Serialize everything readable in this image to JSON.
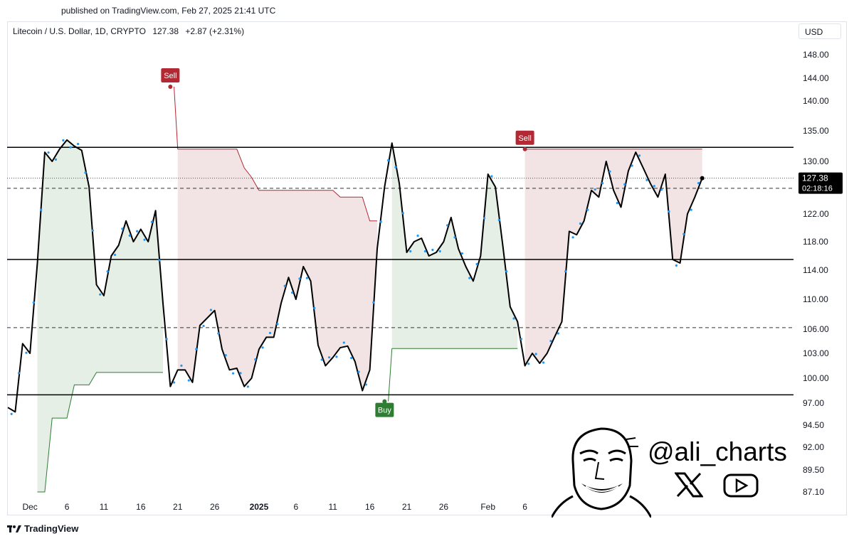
{
  "header": {
    "published": "published on TradingView.com, Feb 27, 2025 21:41 UTC"
  },
  "symbol": {
    "name": "Litecoin / U.S. Dollar, 1D, CRYPTO",
    "price": "127.38",
    "change": "+2.87 (+2.31%)"
  },
  "currency": "USD",
  "price_tag": {
    "price": "127.38",
    "countdown": "02:18:16"
  },
  "footer": {
    "brand": "TradingView"
  },
  "watermark": {
    "handle": "@ali_charts",
    "icons": [
      "face-illustration",
      "x-logo-icon",
      "youtube-icon"
    ]
  },
  "colors": {
    "line": "#000000",
    "dots": "#2196f3",
    "sell": "#b22833",
    "buy": "#2e7d32",
    "sell_fill": "#f2e4e4",
    "buy_fill": "#e6efe6"
  },
  "chart_data": {
    "type": "line",
    "title": "",
    "xlabel": "",
    "ylabel": "",
    "y_ticks": [
      "148.00",
      "144.00",
      "140.00",
      "135.00",
      "130.00",
      "126.00",
      "122.00",
      "118.00",
      "114.00",
      "110.00",
      "106.00",
      "103.00",
      "100.00",
      "97.00",
      "94.50",
      "92.00",
      "89.50",
      "87.10"
    ],
    "x_ticks": [
      "Dec",
      "6",
      "11",
      "16",
      "21",
      "26",
      "2025",
      "6",
      "11",
      "16",
      "21",
      "26",
      "Feb",
      "6"
    ],
    "x_tick_bold": [
      "2025"
    ],
    "ylim": [
      86,
      150
    ],
    "series": [
      {
        "values": [
          96.5,
          96.0,
          104.2,
          103.0,
          115.0,
          131.5,
          130.0,
          132.0,
          133.5,
          132.5,
          131.8,
          126.0,
          112.0,
          110.5,
          116.0,
          117.5,
          121.0,
          118.0,
          119.8,
          118.0,
          122.5,
          109.5,
          99.0,
          101.0,
          101.0,
          99.5,
          106.5,
          107.5,
          108.5,
          103.5,
          101.0,
          101.2,
          99.0,
          100.0,
          103.5,
          105.0,
          105.0,
          109.5,
          113.0,
          110.0,
          114.5,
          112.5,
          104.0,
          101.5,
          102.5,
          103.7,
          103.9,
          102.0,
          98.5,
          101.0,
          117.0,
          126.0,
          133.0,
          126.5,
          116.5,
          118.0,
          118.5,
          116.0,
          116.5,
          118.0,
          121.5,
          117.0,
          114.5,
          112.5,
          116.0,
          128.0,
          126.0,
          117.5,
          109.0,
          107.0,
          101.5,
          103.0,
          101.8,
          103.0,
          105.0,
          107.0,
          119.5,
          119.0,
          121.0,
          125.5,
          124.5,
          130.0,
          125.5,
          123.0,
          128.5,
          131.5,
          129.0,
          126.5,
          124.5,
          128.0,
          115.5,
          115.0,
          122.0,
          124.5,
          127.38
        ]
      },
      {
        "name": "trailing-stop",
        "values": [
          null,
          null,
          null,
          null,
          87.1,
          87.1,
          95.3,
          95.3,
          95.3,
          99.2,
          99.2,
          99.2,
          100.7,
          100.7,
          100.7,
          100.7,
          100.7,
          100.7,
          100.7,
          100.7,
          100.7,
          100.7,
          null,
          132.0,
          132.0,
          132.0,
          132.0,
          132.0,
          132.0,
          132.0,
          132.0,
          132.0,
          129.0,
          127.5,
          125.5,
          125.5,
          125.5,
          125.5,
          125.5,
          125.5,
          125.5,
          125.5,
          125.5,
          125.5,
          125.5,
          124.5,
          124.5,
          124.5,
          124.5,
          121.0,
          121.0,
          null,
          103.6,
          103.6,
          103.6,
          103.6,
          103.6,
          103.6,
          103.6,
          103.6,
          103.6,
          103.6,
          103.6,
          103.6,
          103.6,
          103.6,
          103.6,
          103.6,
          103.6,
          103.6,
          null,
          null,
          null,
          null,
          null,
          null,
          null,
          null,
          null,
          null,
          null,
          null,
          null,
          null,
          null,
          null,
          null,
          null,
          null,
          null,
          null,
          null,
          null,
          null,
          null
        ]
      }
    ],
    "signals": [
      {
        "label": "Sell",
        "index": 22,
        "price": 142.5
      },
      {
        "label": "Buy",
        "index": 51,
        "price": 97.2
      },
      {
        "label": "Sell",
        "index": 70,
        "price": 132.0
      }
    ],
    "sell_zone_2": {
      "from_index": 70,
      "to_index": 94,
      "level": 132.0
    },
    "horizontal_lines": {
      "solid": [
        132.3,
        115.5,
        98.0
      ],
      "dashed": [
        125.8,
        106.2
      ],
      "dotted": [
        127.38
      ]
    }
  }
}
